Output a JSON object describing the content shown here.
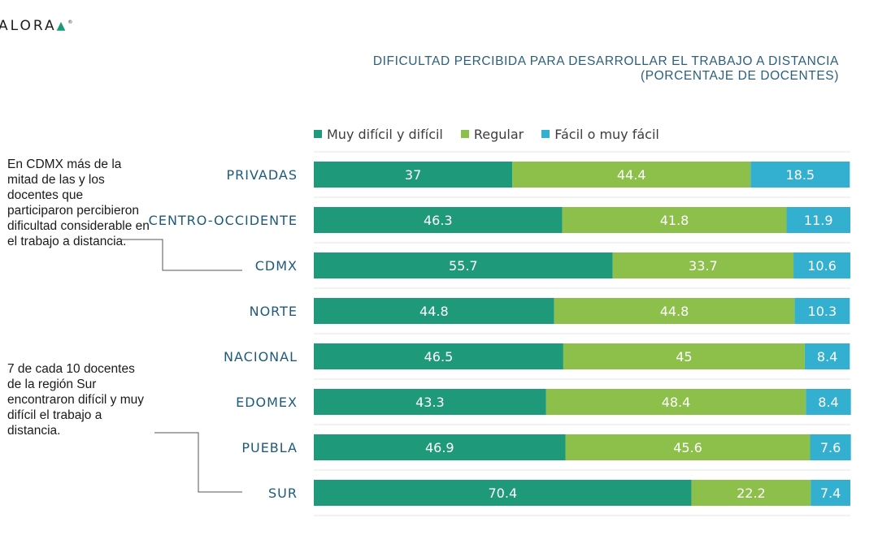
{
  "brand": {
    "name": "ALORA",
    "mark": "▲",
    "registered": "®"
  },
  "annotations": {
    "note1": "En CDMX más de la mitad de las y los docentes que participaron percibieron dificultad considerable en el trabajo a distancia.",
    "note2": "7 de cada 10 docentes de la región Sur encontraron difícil y muy difícil el trabajo a distancia."
  },
  "chart_data": {
    "type": "bar",
    "orientation": "horizontal",
    "stacked": true,
    "title_line1": "DIFICULTAD PERCIBIDA PARA DESARROLLAR EL TRABAJO A DISTANCIA",
    "title_line2": "(PORCENTAJE DE DOCENTES)",
    "categories": [
      "PRIVADAS",
      "CENTRO-OCCIDENTE",
      "CDMX",
      "NORTE",
      "NACIONAL",
      "EDOMEX",
      "PUEBLA",
      "SUR"
    ],
    "series": [
      {
        "name": "Muy difícil y difícil",
        "color": "#1e9a7a",
        "values": [
          37,
          46.3,
          55.7,
          44.8,
          46.5,
          43.3,
          46.9,
          70.4
        ]
      },
      {
        "name": "Regular",
        "color": "#8cc04a",
        "values": [
          44.4,
          41.8,
          33.7,
          44.8,
          45,
          48.4,
          45.6,
          22.2
        ]
      },
      {
        "name": "Fácil o muy fácil",
        "color": "#33b0d0",
        "values": [
          18.5,
          11.9,
          10.6,
          10.3,
          8.4,
          8.4,
          7.6,
          7.4
        ]
      }
    ],
    "xlim": [
      0,
      100
    ],
    "legend_position": "top",
    "grid": true,
    "xlabel": "",
    "ylabel": ""
  }
}
